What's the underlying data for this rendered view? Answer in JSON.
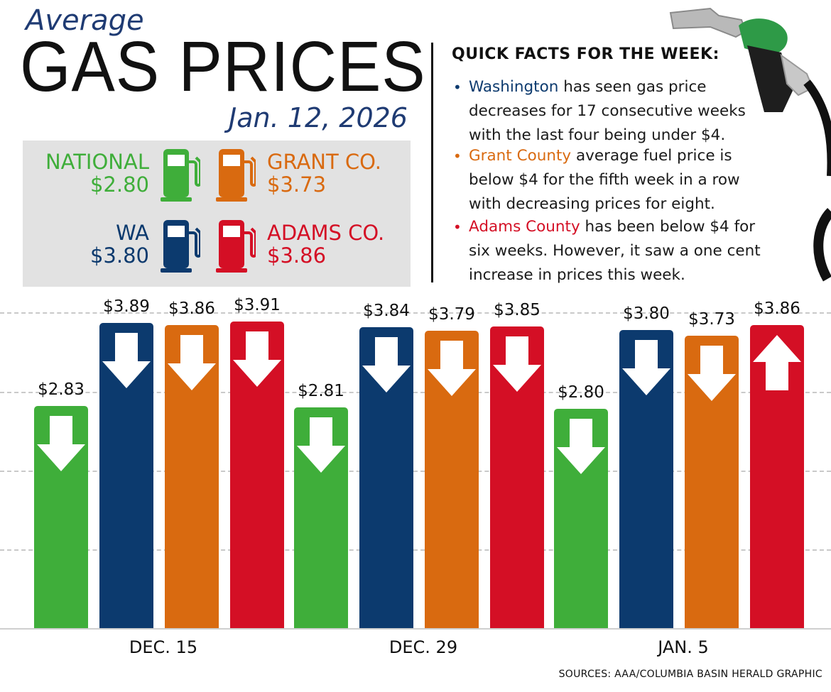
{
  "header": {
    "kicker": "Average",
    "title": "GAS PRICES",
    "date": "Jan. 12, 2026"
  },
  "summary": [
    {
      "name": "NATIONAL",
      "price": "$2.80",
      "color": "#3fae3a",
      "icon": "gas-pump-icon"
    },
    {
      "name": "GRANT CO.",
      "price": "$3.73",
      "color": "#d96a10",
      "icon": "gas-pump-icon"
    },
    {
      "name": "WA",
      "price": "$3.80",
      "color": "#0c3a6e",
      "icon": "gas-pump-icon"
    },
    {
      "name": "ADAMS CO.",
      "price": "$3.86",
      "color": "#d40f25",
      "icon": "gas-pump-icon"
    }
  ],
  "facts": {
    "heading": "QUICK FACTS FOR THE WEEK:",
    "items": [
      {
        "highlight": "Washington",
        "color": "#0c3a6e",
        "line1": " has seen gas price",
        "line2": "decreases for 17 consecutive weeks",
        "line3": "with the last four being under $4."
      },
      {
        "highlight": "Grant County",
        "color": "#d96a10",
        "line1": " average fuel price is",
        "line2": "below $4 for the fifth week in a row",
        "line3": "with decreasing prices for eight."
      },
      {
        "highlight": "Adams County",
        "color": "#d40f25",
        "line1": " has been below $4 for",
        "line2": "six weeks. However, it saw a one cent",
        "line3": "increase in prices this week."
      }
    ]
  },
  "source": "SOURCES: AAA/COLUMBIA BASIN HERALD GRAPHIC",
  "icons": {
    "pump": "gas-pump-nozzle-icon",
    "down": "down-arrow-icon",
    "up": "up-arrow-icon"
  },
  "chart_data": {
    "type": "bar",
    "categories": [
      "DEC. 15",
      "DEC. 29",
      "JAN. 5"
    ],
    "series": [
      {
        "name": "NATIONAL",
        "color": "#3fae3a",
        "values": [
          2.83,
          2.81,
          2.8
        ],
        "labels": [
          "$2.83",
          "$2.81",
          "$2.80"
        ],
        "direction": [
          "down",
          "down",
          "down"
        ]
      },
      {
        "name": "WA",
        "color": "#0c3a6e",
        "values": [
          3.89,
          3.84,
          3.8
        ],
        "labels": [
          "$3.89",
          "$3.84",
          "$3.80"
        ],
        "direction": [
          "down",
          "down",
          "down"
        ]
      },
      {
        "name": "GRANT CO.",
        "color": "#d96a10",
        "values": [
          3.86,
          3.79,
          3.73
        ],
        "labels": [
          "$3.86",
          "$3.79",
          "$3.73"
        ],
        "direction": [
          "down",
          "down",
          "down"
        ]
      },
      {
        "name": "ADAMS CO.",
        "color": "#d40f25",
        "values": [
          3.91,
          3.85,
          3.86
        ],
        "labels": [
          "$3.91",
          "$3.85",
          "$3.86"
        ],
        "direction": [
          "down",
          "down",
          "up"
        ]
      }
    ],
    "ylim": [
      0,
      4.0
    ],
    "grid": true,
    "title": "",
    "xlabel": "",
    "ylabel": ""
  }
}
